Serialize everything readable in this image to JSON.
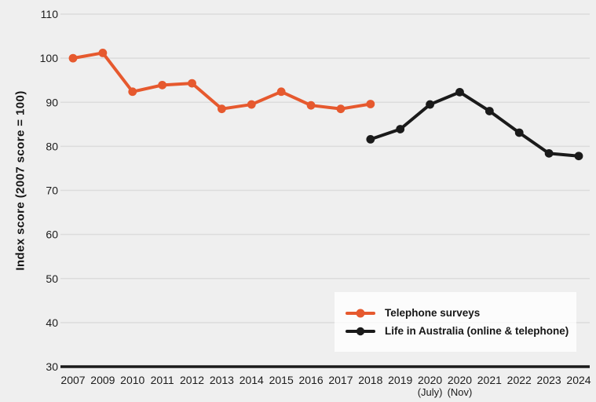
{
  "chart_data": {
    "type": "line",
    "ylabel": "Index score (2007 score = 100)",
    "xlabel": "",
    "title": "",
    "ylim": [
      30,
      110
    ],
    "y_ticks": [
      30,
      40,
      50,
      60,
      70,
      80,
      90,
      100,
      110
    ],
    "grid": "horizontal",
    "legend_position": "inset-bottom-right",
    "x_labels": [
      "2007",
      "2009",
      "2010",
      "2011",
      "2012",
      "2013",
      "2014",
      "2015",
      "2016",
      "2017",
      "2018",
      "2019",
      "2020",
      "2020",
      "2021",
      "2022",
      "2023",
      "2024"
    ],
    "x_sublabels": [
      "",
      "",
      "",
      "",
      "",
      "",
      "",
      "",
      "",
      "",
      "",
      "",
      "(July)",
      "(Nov)",
      "",
      "",
      "",
      ""
    ],
    "series": [
      {
        "id": "telephone",
        "name": "Telephone surveys",
        "color": "#E6592E",
        "x_indices": [
          0,
          1,
          2,
          3,
          4,
          5,
          6,
          7,
          8,
          9,
          10
        ],
        "values": [
          100,
          101.2,
          92.4,
          93.9,
          94.3,
          88.5,
          89.5,
          92.4,
          89.3,
          88.5,
          89.6
        ]
      },
      {
        "id": "life-in-australia",
        "name": "Life in Australia (online & telephone)",
        "color": "#1A1A1A",
        "x_indices": [
          10,
          11,
          12,
          13,
          14,
          15,
          16,
          17
        ],
        "values": [
          81.6,
          83.9,
          89.5,
          92.3,
          88.0,
          83.1,
          78.4,
          77.8
        ]
      }
    ],
    "colors": {
      "background": "#EFEFEF",
      "grid": "#DCDCDC",
      "axis": "#1A1A1A",
      "text": "#1C1C1C"
    }
  }
}
